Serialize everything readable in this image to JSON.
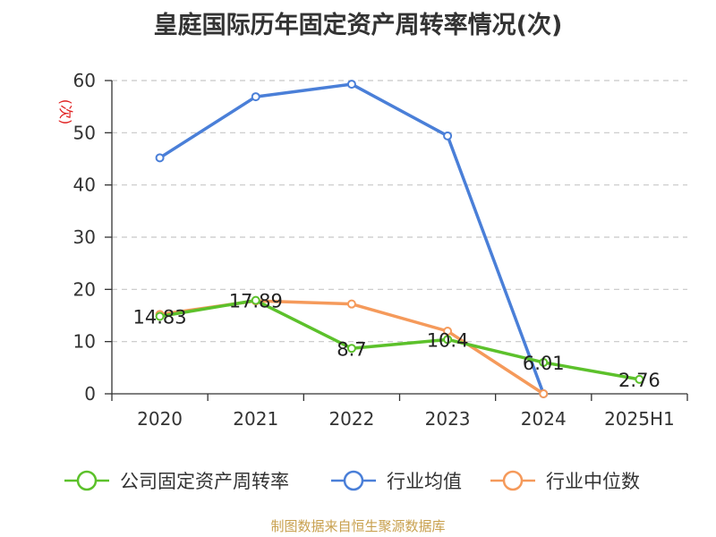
{
  "chart_data": {
    "type": "line",
    "title": "皇庭国际历年固定资产周转率情况(次)",
    "ylabel": "(次)",
    "categories": [
      "2020",
      "2021",
      "2022",
      "2023",
      "2024",
      "2025H1"
    ],
    "ylim": [
      0,
      60
    ],
    "yticks": [
      0,
      10,
      20,
      30,
      40,
      50,
      60
    ],
    "grid": true,
    "legend_position": "bottom",
    "series": [
      {
        "name": "公司固定资产周转率",
        "color": "#5cc12b",
        "values": [
          14.83,
          17.89,
          8.7,
          10.4,
          6.01,
          2.76
        ],
        "labels": [
          "14.83",
          "17.89",
          "8.7",
          "10.4",
          "6.01",
          "2.76"
        ]
      },
      {
        "name": "行业均值",
        "color": "#4a7fd8",
        "values": [
          45.2,
          56.9,
          59.3,
          49.4,
          0.0,
          null
        ]
      },
      {
        "name": "行业中位数",
        "color": "#f59a5b",
        "values": [
          15.2,
          17.8,
          17.2,
          12.0,
          0.0,
          null
        ]
      }
    ]
  },
  "source": "制图数据来自恒生聚源数据库"
}
